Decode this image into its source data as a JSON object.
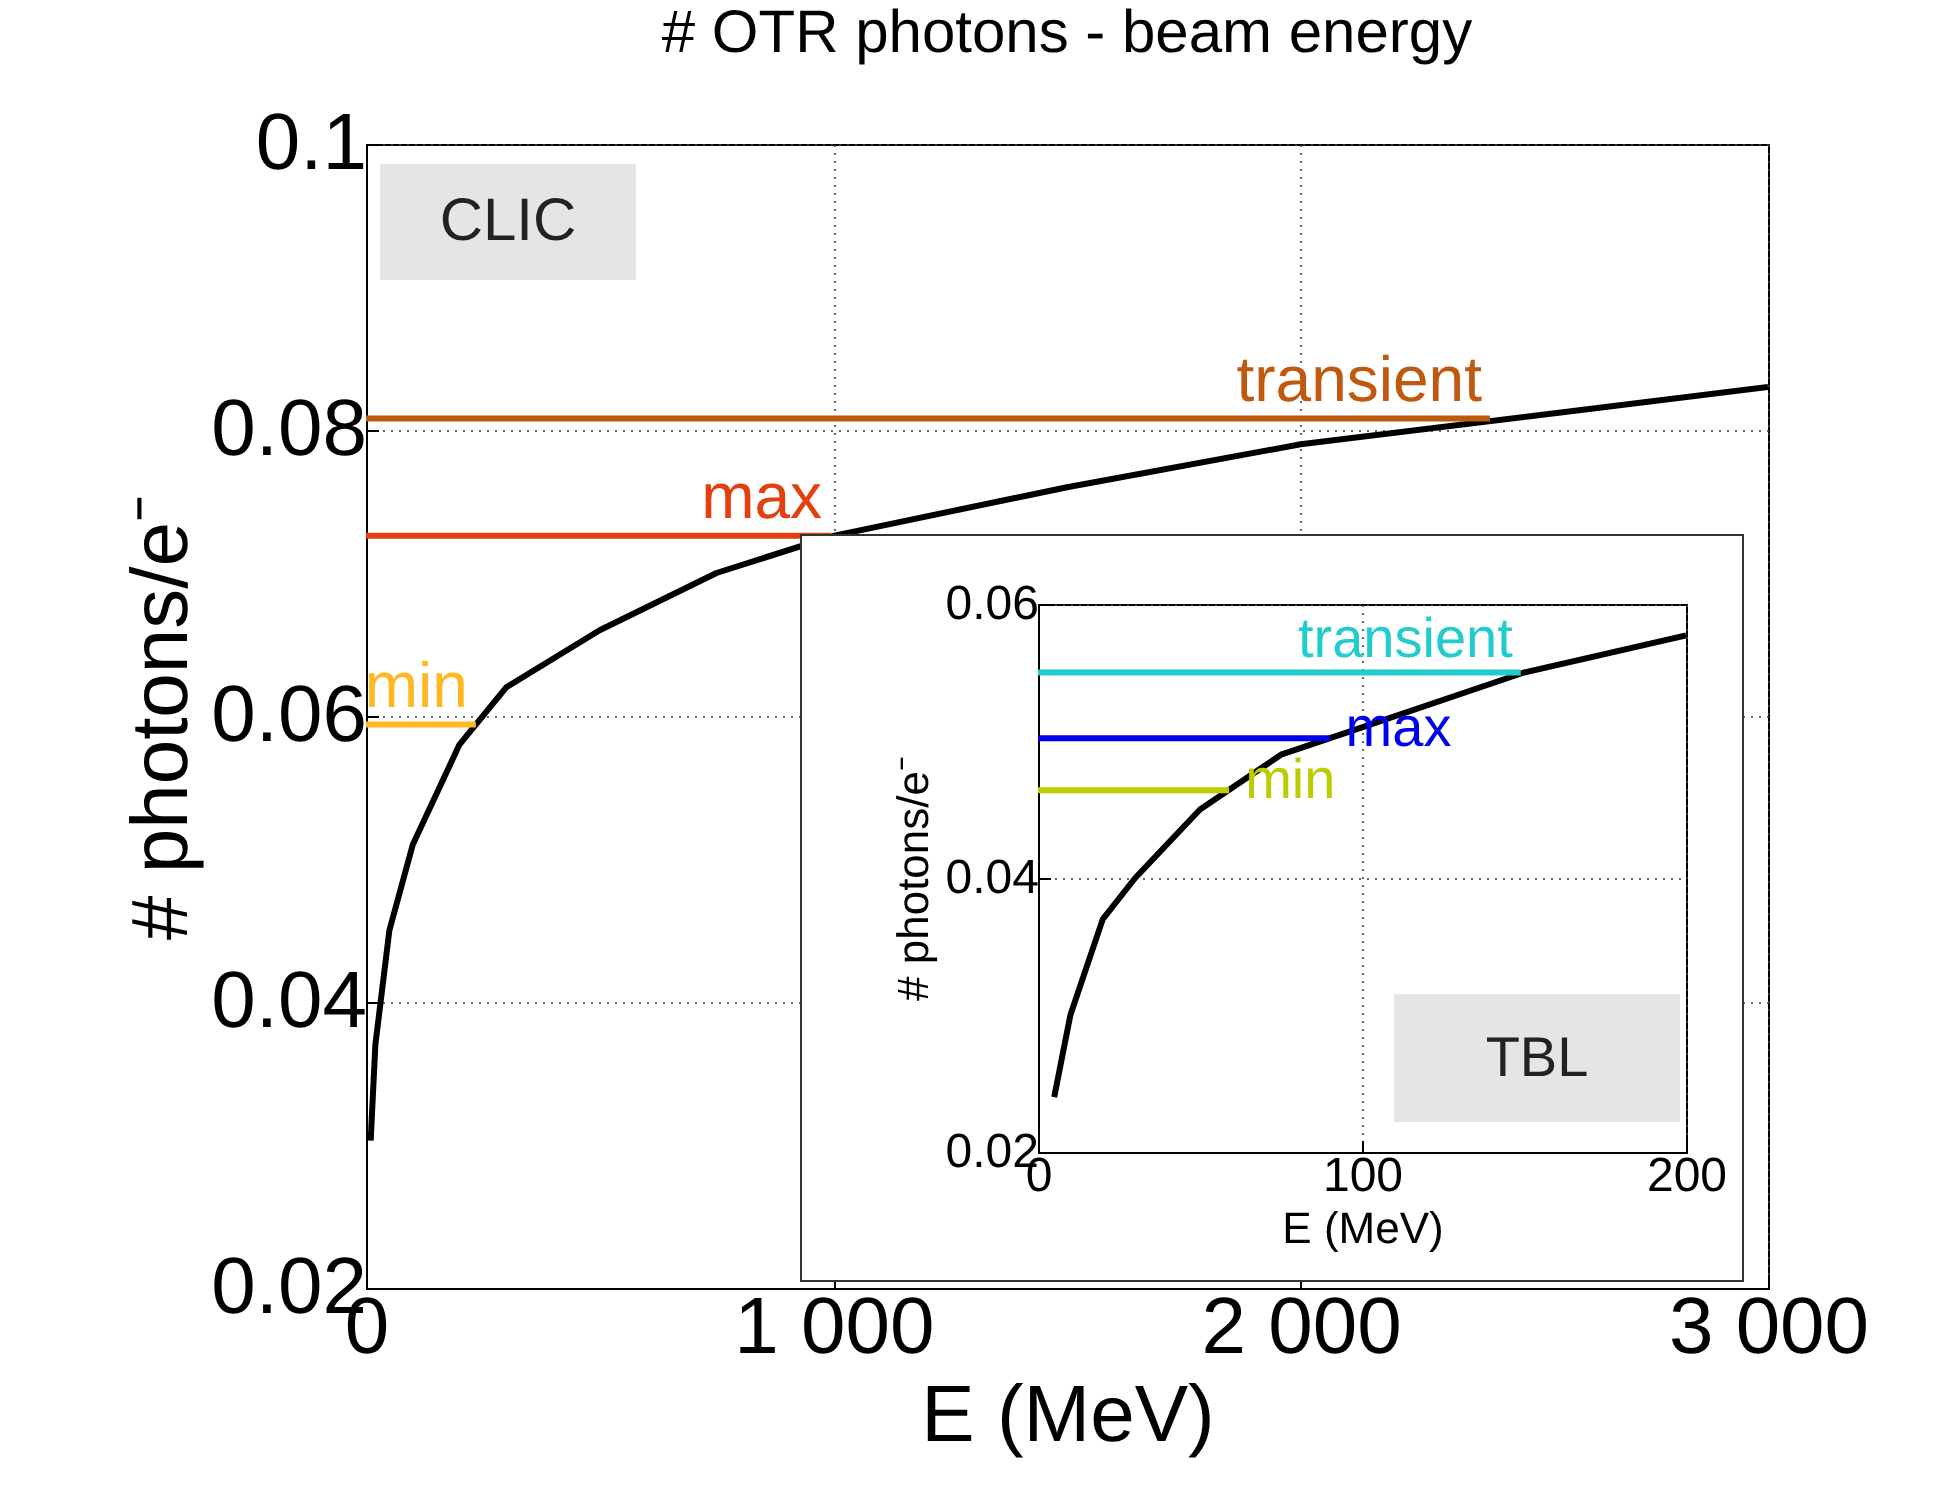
{
  "chart_data": [
    {
      "type": "line",
      "title": "# OTR photons - beam energy",
      "xlabel": "E (MeV)",
      "ylabel": "# photons/e⁻",
      "xlim": [
        0,
        3000
      ],
      "xticks": [
        0,
        {
          "value": 1000,
          "label": "1 000"
        },
        {
          "value": 2000,
          "label": "2 000"
        },
        {
          "value": 3000,
          "label": "3 000"
        }
      ],
      "ylim": [
        0.02,
        0.1
      ],
      "yticks": [
        0.02,
        0.04,
        0.06,
        0.08,
        0.1
      ],
      "grid": true,
      "annotations": [
        "CLIC"
      ],
      "series": [
        {
          "color": "#000000",
          "x": [
            10,
            20,
            50,
            100,
            200,
            300,
            500,
            750,
            1000,
            1500,
            2000,
            2500,
            3000
          ],
          "values": [
            0.0303,
            0.037,
            0.045,
            0.051,
            0.058,
            0.062,
            0.066,
            0.07,
            0.0726,
            0.076,
            0.079,
            0.081,
            0.083
          ]
        },
        {
          "name": "transient",
          "color": "#c0580f",
          "x": [
            0,
            2405
          ],
          "values": [
            0.0808,
            0.0808
          ]
        },
        {
          "name": "max",
          "color": "#e2400e",
          "x": [
            0,
            993
          ],
          "values": [
            0.0726,
            0.0726
          ]
        },
        {
          "name": "min",
          "color": "#ffb820",
          "x": [
            0,
            235
          ],
          "values": [
            0.0594,
            0.0594
          ]
        }
      ]
    },
    {
      "type": "line",
      "xlabel": "E (MeV)",
      "ylabel": "# photons/e⁻",
      "xlim": [
        0,
        200
      ],
      "xticks": [
        0,
        100,
        200
      ],
      "ylim": [
        0.02,
        0.06
      ],
      "yticks": [
        0.02,
        0.04,
        0.06
      ],
      "grid": true,
      "annotations": [
        "TBL"
      ],
      "series": [
        {
          "color": "#000000",
          "x": [
            5,
            10,
            20,
            30,
            50,
            75,
            100,
            150,
            200
          ],
          "values": [
            0.024,
            0.03,
            0.037,
            0.04,
            0.045,
            0.049,
            0.051,
            0.055,
            0.0577
          ]
        },
        {
          "name": "transient",
          "color": "#22cccc",
          "x": [
            0,
            149
          ],
          "values": [
            0.055,
            0.055
          ]
        },
        {
          "name": "max",
          "color": "#0000ee",
          "x": [
            0,
            90
          ],
          "values": [
            0.0502,
            0.0502
          ]
        },
        {
          "name": "min",
          "color": "#bbcc00",
          "x": [
            0,
            59
          ],
          "values": [
            0.0464,
            0.0464
          ]
        }
      ]
    }
  ]
}
